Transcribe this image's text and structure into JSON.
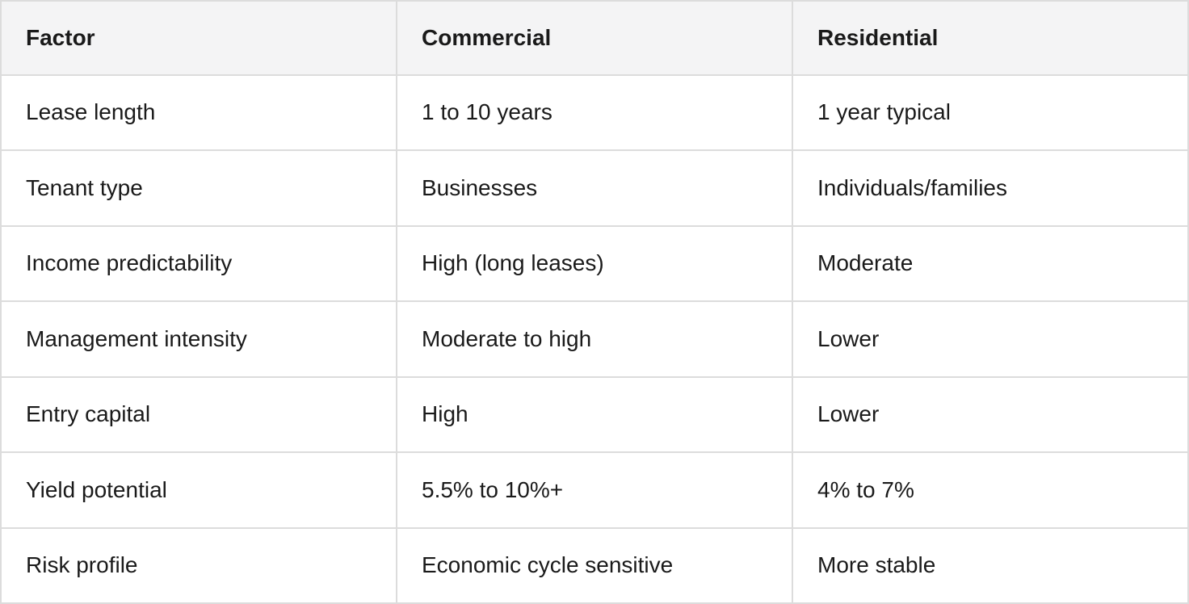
{
  "table": {
    "columns": [
      {
        "label": "Factor"
      },
      {
        "label": "Commercial"
      },
      {
        "label": "Residential"
      }
    ],
    "rows": [
      [
        "Lease length",
        "1 to 10 years",
        "1 year typical"
      ],
      [
        "Tenant type",
        "Businesses",
        "Individuals/families"
      ],
      [
        "Income predictability",
        "High (long leases)",
        "Moderate"
      ],
      [
        "Management intensity",
        "Moderate to high",
        "Lower"
      ],
      [
        "Entry capital",
        "High",
        "Lower"
      ],
      [
        "Yield potential",
        "5.5% to 10%+",
        "4% to 7%"
      ],
      [
        "Risk profile",
        "Economic cycle sensitive",
        "More stable"
      ]
    ],
    "colors": {
      "header_bg": "#f4f4f5",
      "border": "#dcdcdc",
      "text": "#1a1a1a"
    }
  }
}
